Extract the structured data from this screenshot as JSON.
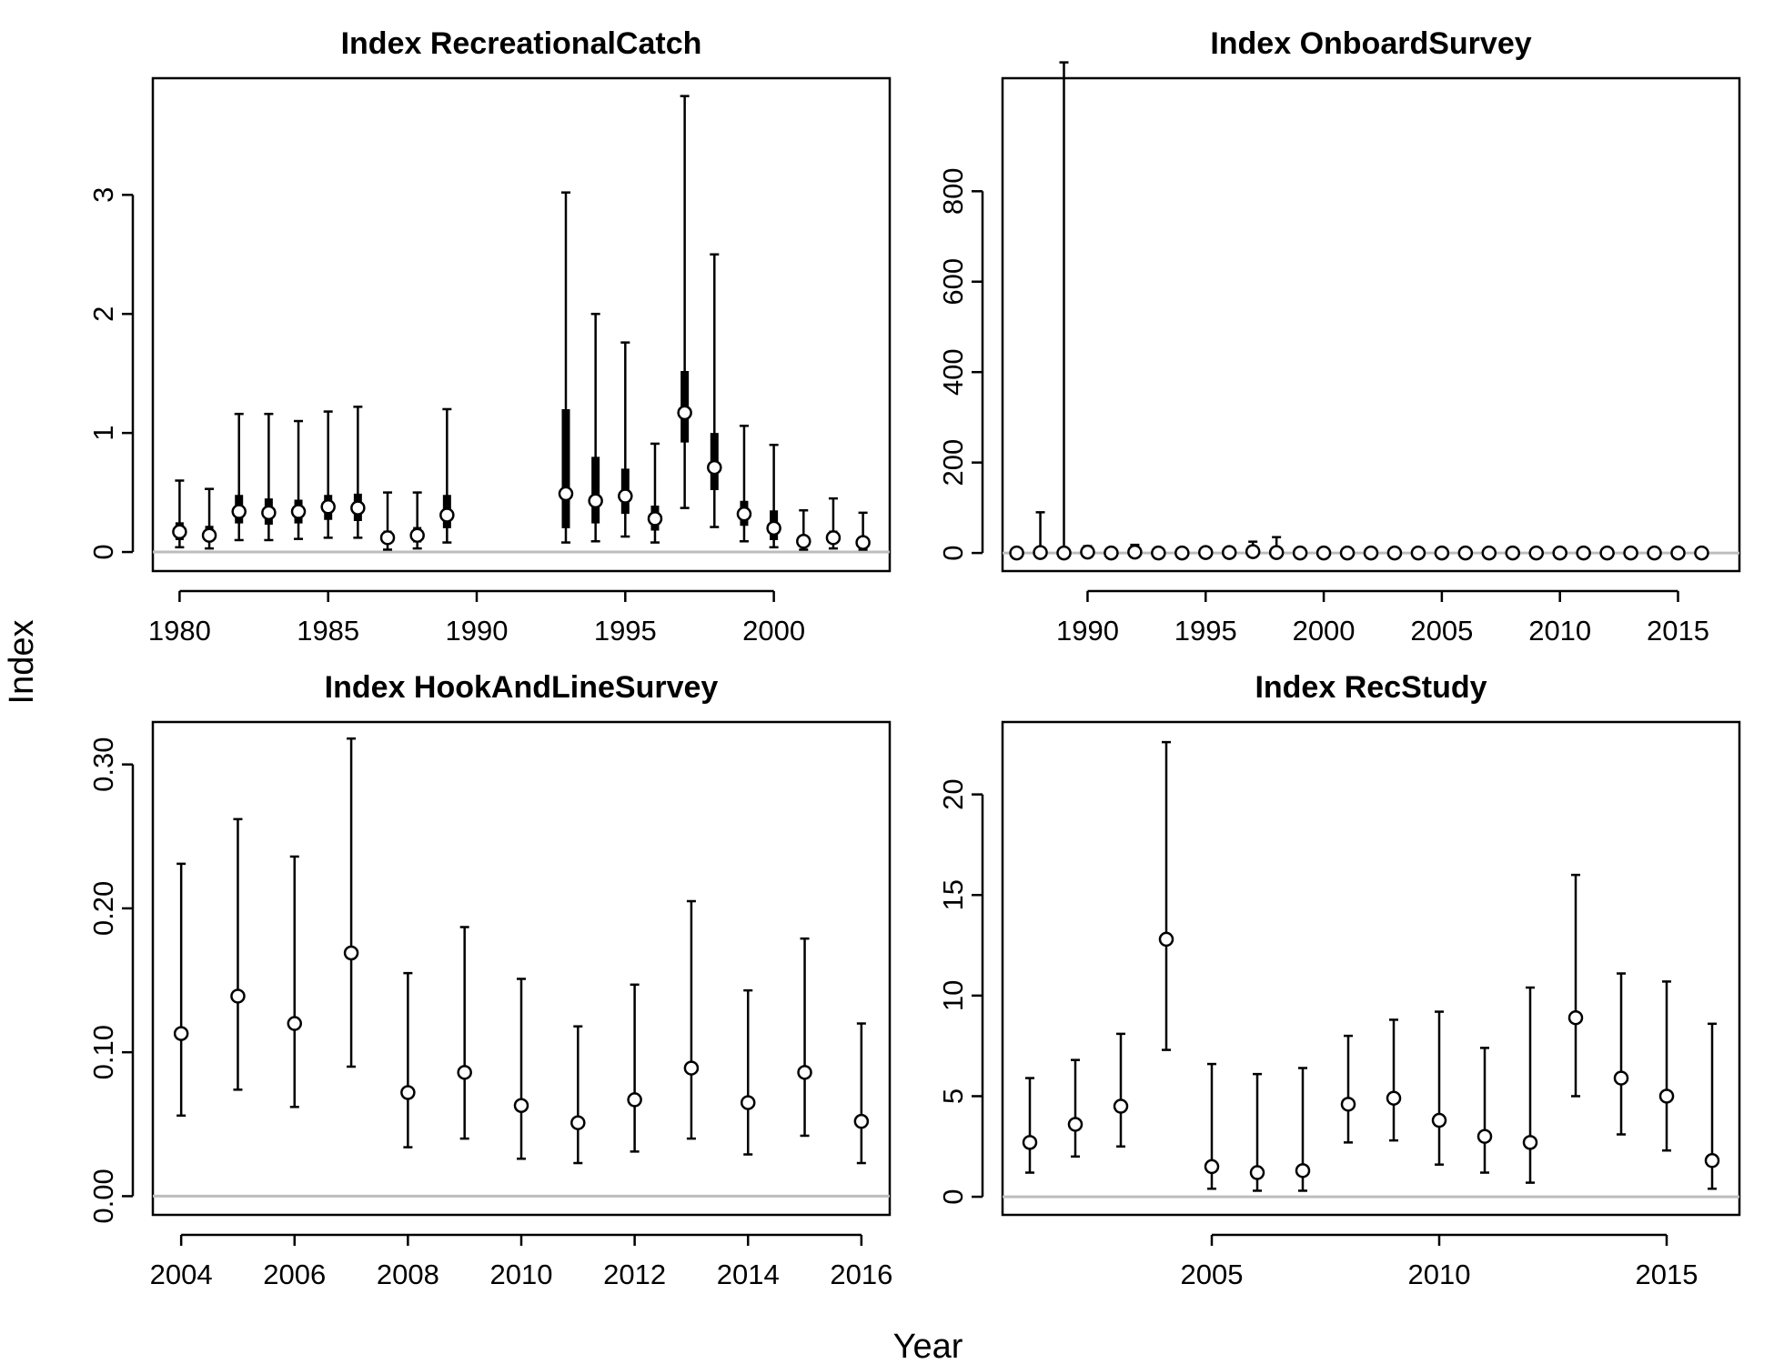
{
  "figure": {
    "xlabel": "Year",
    "ylabel": "Index"
  },
  "chart_data": [
    {
      "type": "scatter",
      "title": "Index RecreationalCatch",
      "xlabel": "Year",
      "ylabel": "Index",
      "xlim": [
        1979.1,
        2003.9
      ],
      "ylim": [
        -0.16,
        3.98
      ],
      "x_ticks": [
        1980,
        1985,
        1990,
        1995,
        2000
      ],
      "y_ticks": [
        0,
        1,
        2,
        3
      ],
      "x": [
        1980,
        1981,
        1982,
        1983,
        1984,
        1985,
        1986,
        1987,
        1988,
        1989,
        1993,
        1994,
        1995,
        1996,
        1997,
        1998,
        1999,
        2000,
        2001,
        2002,
        2003
      ],
      "values": [
        0.17,
        0.14,
        0.34,
        0.33,
        0.34,
        0.38,
        0.37,
        0.12,
        0.14,
        0.31,
        0.49,
        0.43,
        0.47,
        0.28,
        1.17,
        0.71,
        0.32,
        0.2,
        0.09,
        0.12,
        0.08
      ],
      "lower": [
        0.04,
        0.03,
        0.1,
        0.1,
        0.11,
        0.12,
        0.12,
        0.02,
        0.03,
        0.08,
        0.08,
        0.09,
        0.13,
        0.08,
        0.37,
        0.21,
        0.09,
        0.04,
        0.02,
        0.03,
        0.02
      ],
      "upper": [
        0.6,
        0.53,
        1.16,
        1.16,
        1.1,
        1.18,
        1.22,
        0.5,
        0.5,
        1.2,
        3.02,
        2.0,
        1.76,
        0.91,
        3.83,
        2.5,
        1.06,
        0.9,
        0.35,
        0.45,
        0.33
      ],
      "inner_lower": [
        0.1,
        0.09,
        0.24,
        0.23,
        0.24,
        0.27,
        0.26,
        0.07,
        0.08,
        0.2,
        0.2,
        0.24,
        0.32,
        0.18,
        0.92,
        0.52,
        0.22,
        0.1,
        0.05,
        0.07,
        0.05
      ],
      "inner_upper": [
        0.25,
        0.22,
        0.48,
        0.45,
        0.44,
        0.48,
        0.49,
        0.18,
        0.21,
        0.48,
        1.2,
        0.8,
        0.7,
        0.39,
        1.52,
        1.0,
        0.43,
        0.35,
        0.14,
        0.18,
        0.12
      ]
    },
    {
      "type": "scatter",
      "title": "Index OnboardSurvey",
      "xlabel": "Year",
      "ylabel": "Index",
      "xlim": [
        1986.4,
        2017.6
      ],
      "ylim": [
        -40,
        1050
      ],
      "x_ticks": [
        1990,
        1995,
        2000,
        2005,
        2010,
        2015
      ],
      "y_ticks": [
        0,
        200,
        400,
        600,
        800
      ],
      "x": [
        1987,
        1988,
        1989,
        1990,
        1991,
        1992,
        1993,
        1994,
        1995,
        1996,
        1997,
        1998,
        1999,
        2000,
        2001,
        2002,
        2003,
        2004,
        2005,
        2006,
        2007,
        2008,
        2009,
        2010,
        2011,
        2012,
        2013,
        2014,
        2015,
        2016
      ],
      "values": [
        0,
        1,
        0,
        2,
        0,
        2,
        0,
        0,
        1,
        1,
        3,
        1,
        0,
        0,
        0,
        0,
        0,
        0,
        0,
        0,
        0,
        0,
        0,
        0,
        0,
        0,
        0,
        0,
        0,
        0
      ],
      "lower": [
        0,
        0,
        0,
        0,
        0,
        0,
        0,
        0,
        0,
        0,
        0,
        0,
        0,
        0,
        0,
        0,
        0,
        0,
        0,
        0,
        0,
        0,
        0,
        0,
        0,
        0,
        0,
        0,
        0,
        0
      ],
      "upper": [
        2,
        90,
        1085,
        15,
        4,
        18,
        3,
        2,
        7,
        12,
        25,
        35,
        2,
        1,
        1,
        1,
        1,
        1,
        1,
        1,
        1,
        1,
        1,
        1,
        1,
        1,
        1,
        1,
        1,
        1
      ]
    },
    {
      "type": "scatter",
      "title": "Index HookAndLineSurvey",
      "xlabel": "Year",
      "ylabel": "Index",
      "xlim": [
        2003.5,
        2016.5
      ],
      "ylim": [
        -0.013,
        0.3295
      ],
      "x_ticks": [
        2004,
        2006,
        2008,
        2010,
        2012,
        2014,
        2016
      ],
      "y_ticks": [
        0.0,
        0.1,
        0.2,
        0.3
      ],
      "y_tick_labels": [
        "0.00",
        "0.10",
        "0.20",
        "0.30"
      ],
      "x": [
        2004,
        2005,
        2006,
        2007,
        2008,
        2009,
        2010,
        2011,
        2012,
        2013,
        2014,
        2015,
        2016
      ],
      "values": [
        0.113,
        0.139,
        0.12,
        0.169,
        0.072,
        0.086,
        0.063,
        0.051,
        0.067,
        0.089,
        0.065,
        0.086,
        0.052
      ],
      "lower": [
        0.056,
        0.074,
        0.062,
        0.09,
        0.034,
        0.04,
        0.026,
        0.023,
        0.031,
        0.04,
        0.029,
        0.042,
        0.023
      ],
      "upper": [
        0.231,
        0.262,
        0.236,
        0.318,
        0.155,
        0.187,
        0.151,
        0.118,
        0.147,
        0.205,
        0.143,
        0.179,
        0.12
      ]
    },
    {
      "type": "scatter",
      "title": "Index RecStudy",
      "xlabel": "Year",
      "ylabel": "Index",
      "xlim": [
        2000.4,
        2016.6
      ],
      "ylim": [
        -0.9,
        23.6
      ],
      "x_ticks": [
        2005,
        2010,
        2015
      ],
      "y_ticks": [
        0,
        5,
        10,
        15,
        20
      ],
      "x": [
        2001,
        2002,
        2003,
        2004,
        2005,
        2006,
        2007,
        2008,
        2009,
        2010,
        2011,
        2012,
        2013,
        2014,
        2015,
        2016
      ],
      "values": [
        2.7,
        3.6,
        4.5,
        12.8,
        1.5,
        1.2,
        1.3,
        4.6,
        4.9,
        3.8,
        3.0,
        2.7,
        8.9,
        5.9,
        5.0,
        1.8
      ],
      "lower": [
        1.2,
        2.0,
        2.5,
        7.3,
        0.4,
        0.3,
        0.3,
        2.7,
        2.8,
        1.6,
        1.2,
        0.7,
        5.0,
        3.1,
        2.3,
        0.4
      ],
      "upper": [
        5.9,
        6.8,
        8.1,
        22.6,
        6.6,
        6.1,
        6.4,
        8.0,
        8.8,
        9.2,
        7.4,
        10.4,
        16.0,
        11.1,
        10.7,
        8.6
      ]
    }
  ]
}
